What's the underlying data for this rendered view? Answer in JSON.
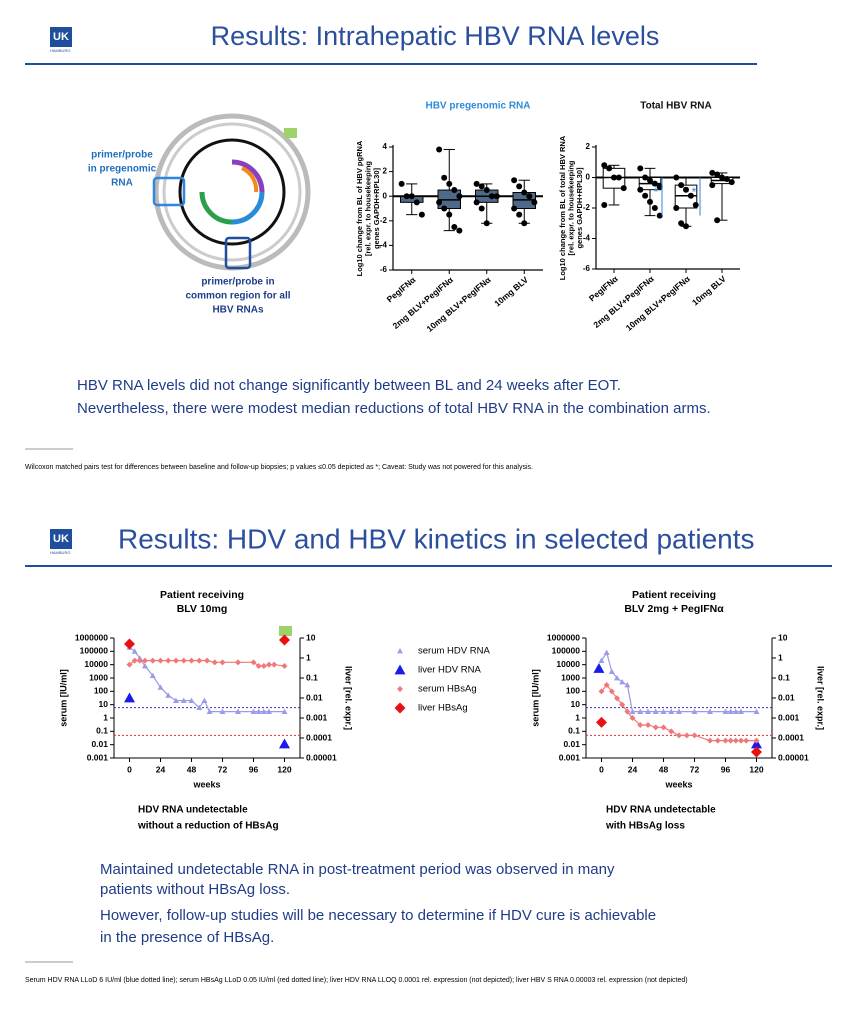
{
  "slides": [
    {
      "logo": "UK",
      "logo_sub": "HAMBURG",
      "title": "Results: Intrahepatic HBV RNA levels",
      "probe_label_1": [
        "primer/probe",
        "in pregenomic",
        "RNA"
      ],
      "probe_label_2": [
        "primer/probe in",
        "common region for all",
        "HBV RNAs"
      ],
      "body": [
        "HBV RNA levels did not change significantly between BL and 24 weeks after EOT.",
        "Nevertheless, there were modest median reductions of total HBV RNA in the combination arms."
      ],
      "footnote": "Wilcoxon matched pairs test for differences between baseline and follow-up biopsies; p values ≤0.05 depicted as *; Caveat: Study was not powered for this analysis."
    },
    {
      "logo": "UK",
      "logo_sub": "HAMBURG",
      "title": "Results: HDV and HBV kinetics in selected patients",
      "body": [
        "Maintained undetectable RNA in post-treatment period was observed in many",
        "patients without HBsAg loss.",
        "However, follow-up studies will be necessary to determine if HDV cure is achievable",
        "in the presence of HBsAg."
      ],
      "footnote": "Serum HDV RNA LLoD 6 IU/ml (blue dotted line); serum HBsAg LLoD 0.05 IU/ml (red dotted line); liver HDV RNA LLOQ 0.0001 rel. expression (not depicted); liver HBV S RNA 0.00003 rel. expression (not depicted)"
    }
  ],
  "chart_data": [
    {
      "type": "box",
      "title": "HBV pregenomic RNA",
      "title_color": "#2e8bd8",
      "box_color": "#4f6a88",
      "ylabel": [
        "Log10 change from BL of HBV pgRNA",
        "[rel. expr. to housekeeping",
        "genes GAPDH+RPL30]"
      ],
      "categories": [
        "PegIFNα",
        "2mg BLV+PegIFNα",
        "10mg BLV+PegIFNα",
        "10mg BLV"
      ],
      "ylim": [
        -6,
        4
      ],
      "yticks": [
        -6,
        -4,
        -2,
        0,
        2,
        4
      ],
      "boxes": [
        {
          "min": -1.5,
          "q1": -0.5,
          "median": 0,
          "q3": 0,
          "max": 1,
          "points": [
            1,
            0,
            0,
            -0.5,
            -1.5
          ]
        },
        {
          "min": -2.8,
          "q1": -1,
          "median": -0.3,
          "q3": 0.5,
          "max": 3.8,
          "points": [
            3.8,
            1.5,
            1,
            0.5,
            0,
            -0.5,
            -1,
            -1.5,
            -2.5,
            -2.8
          ]
        },
        {
          "min": -2.2,
          "q1": -0.5,
          "median": 0,
          "q3": 0.5,
          "max": 1,
          "points": [
            1,
            0.8,
            0.5,
            0,
            0,
            -0.5,
            -1,
            -2.2
          ]
        },
        {
          "min": -2.2,
          "q1": -1,
          "median": -0.3,
          "q3": 0.3,
          "max": 1.3,
          "points": [
            1.3,
            0.8,
            0.3,
            0,
            -0.5,
            -1,
            -1.5,
            -2.2
          ]
        }
      ]
    },
    {
      "type": "box",
      "title": "Total HBV RNA",
      "title_color": "#111111",
      "box_color": "#ffffff",
      "ylabel": [
        "Log10 change from BL of total HBV RNA",
        "[rel. expr. to housekeeping",
        "genes GAPDH+RPL30]"
      ],
      "categories": [
        "PegIFNα",
        "2mg BLV+PegIFNα",
        "10mg BLV+PegIFNα",
        "10mg BLV"
      ],
      "ylim": [
        -6,
        2
      ],
      "yticks": [
        -6,
        -4,
        -2,
        0,
        2
      ],
      "annotations": [
        "*",
        "*"
      ],
      "boxes": [
        {
          "min": -1.8,
          "q1": -0.7,
          "median": 0,
          "q3": 0.6,
          "max": 0.8,
          "points": [
            0.8,
            0.6,
            0,
            0,
            -0.7,
            -1.8
          ]
        },
        {
          "min": -2.5,
          "q1": -0.8,
          "median": -0.4,
          "q3": 0,
          "max": 0.6,
          "points": [
            0.6,
            0,
            -0.2,
            -0.4,
            -0.6,
            -0.8,
            -1.2,
            -1.6,
            -2,
            -2.5
          ]
        },
        {
          "min": -3.2,
          "q1": -2,
          "median": -1.2,
          "q3": -0.5,
          "max": 0,
          "points": [
            0,
            -0.5,
            -0.8,
            -1.2,
            -1.8,
            -2,
            -3,
            -3.2
          ]
        },
        {
          "min": -2.8,
          "q1": -0.4,
          "median": -0.2,
          "q3": 0,
          "max": 0.3,
          "points": [
            0.3,
            0.2,
            0,
            -0.1,
            -0.3,
            -0.5,
            -2.8
          ]
        }
      ]
    },
    {
      "type": "line",
      "title": "Patient receiving",
      "subtitle": "BLV 10mg",
      "xlabel": "weeks",
      "ylabel": "serum [IU/ml]",
      "y2label": "liver [rel. expr.]",
      "log_y": true,
      "legend": true,
      "caption": [
        "HDV RNA undetectable",
        "without a reduction of HBsAg"
      ],
      "xlim": [
        -12,
        132
      ],
      "xticks": [
        0,
        24,
        48,
        72,
        96,
        120
      ],
      "ylim": [
        0.001,
        1000000
      ],
      "yticks": [
        0.001,
        0.01,
        0.1,
        1,
        10,
        100,
        1000,
        10000,
        100000,
        1000000
      ],
      "y2lim": [
        1e-05,
        10
      ],
      "y2ticks": [
        1e-05,
        0.0001,
        0.001,
        0.01,
        0.1,
        1,
        10
      ],
      "ref_lines": [
        {
          "value": 6,
          "color": "#3333cc"
        },
        {
          "value": 0.05,
          "color": "#e03030"
        }
      ],
      "series": [
        {
          "name": "serum HDV RNA",
          "color": "#9b9be6",
          "marker": "triangle",
          "line": true,
          "x": [
            0,
            4,
            8,
            12,
            18,
            24,
            30,
            36,
            42,
            48,
            54,
            58,
            62,
            72,
            84,
            96,
            100,
            104,
            108,
            120
          ],
          "values": [
            200000,
            100000,
            30000,
            8000,
            1500,
            200,
            50,
            20,
            20,
            20,
            6,
            20,
            3,
            3,
            3,
            3,
            3,
            3,
            3,
            3
          ]
        },
        {
          "name": "liver HDV RNA",
          "color": "#1a1aee",
          "marker": "triangle",
          "line": false,
          "axis": "y2",
          "x": [
            0,
            120
          ],
          "values": [
            0.01,
            5e-05
          ]
        },
        {
          "name": "serum HBsAg",
          "color": "#f07878",
          "marker": "diamond",
          "line": true,
          "x": [
            0,
            4,
            8,
            12,
            18,
            24,
            30,
            36,
            42,
            48,
            54,
            60,
            66,
            72,
            84,
            96,
            100,
            104,
            108,
            112,
            120
          ],
          "values": [
            10000,
            20000,
            20000,
            20000,
            20000,
            20000,
            20000,
            20000,
            20000,
            20000,
            20000,
            20000,
            15000,
            15000,
            15000,
            15000,
            8000,
            8000,
            10000,
            10000,
            8000
          ]
        },
        {
          "name": "liver HBsAg",
          "color": "#e81010",
          "marker": "diamond",
          "line": false,
          "axis": "y2",
          "x": [
            0,
            120
          ],
          "values": [
            5,
            8
          ]
        }
      ]
    },
    {
      "type": "line",
      "title": "Patient receiving",
      "subtitle": "BLV 2mg + PegIFNα",
      "xlabel": "weeks",
      "ylabel": "serum [IU/ml]",
      "y2label": "liver [rel. expr.]",
      "log_y": true,
      "caption": [
        "HDV RNA undetectable",
        "with HBsAg loss"
      ],
      "xlim": [
        -12,
        132
      ],
      "xticks": [
        0,
        24,
        48,
        72,
        96,
        120
      ],
      "ylim": [
        0.001,
        1000000
      ],
      "yticks": [
        0.001,
        0.01,
        0.1,
        1,
        10,
        100,
        1000,
        10000,
        100000,
        1000000
      ],
      "y2lim": [
        1e-05,
        10
      ],
      "y2ticks": [
        1e-05,
        0.0001,
        0.001,
        0.01,
        0.1,
        1,
        10
      ],
      "ref_lines": [
        {
          "value": 6,
          "color": "#3333cc"
        },
        {
          "value": 0.05,
          "color": "#e03030"
        }
      ],
      "series": [
        {
          "color": "#9b9be6",
          "marker": "triangle",
          "line": true,
          "x": [
            0,
            4,
            8,
            12,
            16,
            20,
            24,
            30,
            36,
            42,
            48,
            54,
            60,
            72,
            84,
            96,
            100,
            104,
            108,
            120
          ],
          "values": [
            20000,
            80000,
            3000,
            1000,
            500,
            300,
            3,
            3,
            3,
            3,
            3,
            3,
            3,
            3,
            3,
            3,
            3,
            3,
            3,
            3
          ]
        },
        {
          "color": "#1a1aee",
          "marker": "triangle",
          "line": false,
          "axis": "y2",
          "x": [
            -2,
            120
          ],
          "values": [
            0.3,
            5e-05
          ]
        },
        {
          "color": "#f07878",
          "marker": "diamond",
          "line": true,
          "x": [
            0,
            4,
            8,
            12,
            16,
            20,
            24,
            30,
            36,
            42,
            48,
            54,
            60,
            66,
            72,
            84,
            90,
            96,
            100,
            104,
            108,
            112,
            120
          ],
          "values": [
            100,
            300,
            100,
            30,
            10,
            3,
            1,
            0.3,
            0.3,
            0.2,
            0.2,
            0.1,
            0.05,
            0.05,
            0.05,
            0.02,
            0.02,
            0.02,
            0.02,
            0.02,
            0.02,
            0.02,
            0.02
          ]
        },
        {
          "color": "#e81010",
          "marker": "diamond",
          "line": false,
          "axis": "y2",
          "x": [
            0,
            120
          ],
          "values": [
            0.0006,
            2e-05
          ]
        }
      ]
    }
  ]
}
